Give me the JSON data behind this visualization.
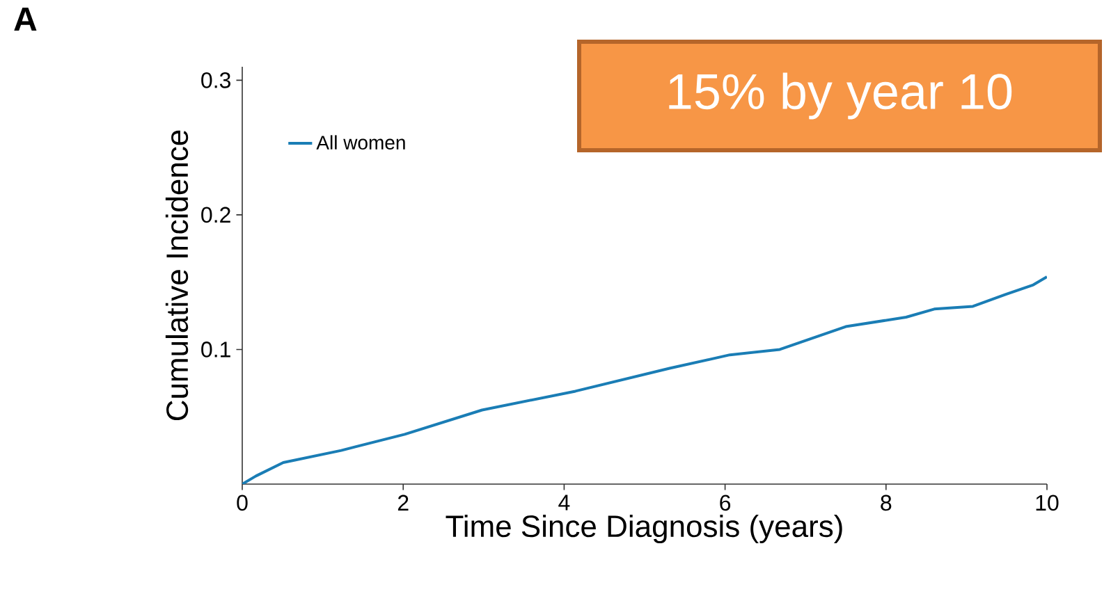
{
  "chart_data": {
    "type": "line",
    "title": "A",
    "xlabel": "Time Since Diagnosis (years)",
    "ylabel": "Cumulative Incidence",
    "annotations": [
      "15% by year 10"
    ],
    "x": [
      0,
      0.17,
      0.51,
      1.23,
      2.02,
      2.98,
      4.14,
      5.31,
      6.06,
      6.68,
      7.5,
      8.25,
      8.6,
      9.08,
      9.49,
      9.83,
      10
    ],
    "series": [
      {
        "name": "All women",
        "color": "#1a7db5",
        "values": [
          0,
          0.006,
          0.016,
          0.025,
          0.037,
          0.055,
          0.069,
          0.086,
          0.096,
          0.1,
          0.117,
          0.124,
          0.13,
          0.132,
          0.141,
          0.148,
          0.154
        ]
      }
    ],
    "xlim": [
      0,
      10
    ],
    "ylim": [
      0,
      0.31
    ],
    "xticks": [
      0,
      2,
      4,
      6,
      8,
      10
    ],
    "yticks": [
      0.1,
      0.2,
      0.3
    ],
    "legend": "top left",
    "marker": "none",
    "line_style": "solid",
    "grid": false
  }
}
